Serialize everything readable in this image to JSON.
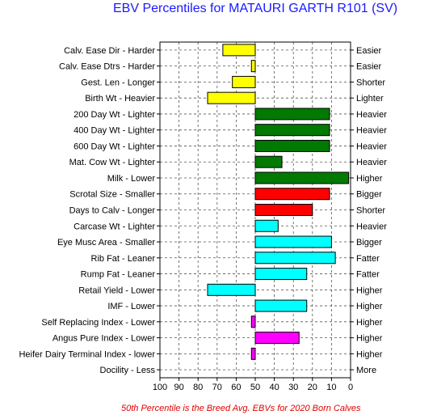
{
  "chart_data": {
    "type": "bar",
    "title": "EBV Percentiles for MATAURI GARTH R101 (SV)",
    "footnote": "50th Percentile is the Breed Avg. EBVs for 2020 Born Calves",
    "baseline": 50,
    "xlim": [
      100,
      0
    ],
    "x_ticks": [
      "100",
      "90",
      "80",
      "70",
      "60",
      "50",
      "40",
      "30",
      "20",
      "10",
      "0"
    ],
    "grid": true,
    "traits": [
      {
        "left": "Calv. Ease Dir - Harder",
        "right": "Easier",
        "value": 67,
        "color": "#ffff00"
      },
      {
        "left": "Calv. Ease Dtrs - Harder",
        "right": "Easier",
        "value": 52,
        "color": "#ffff00"
      },
      {
        "left": "Gest. Len - Longer",
        "right": "Shorter",
        "value": 62,
        "color": "#ffff00"
      },
      {
        "left": "Birth Wt - Heavier",
        "right": "Lighter",
        "value": 75,
        "color": "#ffff00"
      },
      {
        "left": "200 Day Wt - Lighter",
        "right": "Heavier",
        "value": 11,
        "color": "#007a00"
      },
      {
        "left": "400 Day Wt - Lighter",
        "right": "Heavier",
        "value": 11,
        "color": "#007a00"
      },
      {
        "left": "600 Day Wt - Lighter",
        "right": "Heavier",
        "value": 11,
        "color": "#007a00"
      },
      {
        "left": "Mat. Cow Wt - Lighter",
        "right": "Heavier",
        "value": 36,
        "color": "#007a00"
      },
      {
        "left": "Milk - Lower",
        "right": "Higher",
        "value": 1,
        "color": "#007a00"
      },
      {
        "left": "Scrotal Size - Smaller",
        "right": "Bigger",
        "value": 11,
        "color": "#ff0000"
      },
      {
        "left": "Days to Calv - Longer",
        "right": "Shorter",
        "value": 20,
        "color": "#ff0000"
      },
      {
        "left": "Carcase Wt - Lighter",
        "right": "Heavier",
        "value": 38,
        "color": "#00ffff"
      },
      {
        "left": "Eye Musc Area - Smaller",
        "right": "Bigger",
        "value": 10,
        "color": "#00ffff"
      },
      {
        "left": "Rib Fat - Leaner",
        "right": "Fatter",
        "value": 8,
        "color": "#00ffff"
      },
      {
        "left": "Rump Fat - Leaner",
        "right": "Fatter",
        "value": 23,
        "color": "#00ffff"
      },
      {
        "left": "Retail Yield - Lower",
        "right": "Higher",
        "value": 75,
        "color": "#00ffff"
      },
      {
        "left": "IMF - Lower",
        "right": "Higher",
        "value": 23,
        "color": "#00ffff"
      },
      {
        "left": "Self Replacing Index - Lower",
        "right": "Higher",
        "value": 52,
        "color": "#ff00ff"
      },
      {
        "left": "Angus Pure Index - Lower",
        "right": "Higher",
        "value": 27,
        "color": "#ff00ff"
      },
      {
        "left": "Heifer Dairy Terminal Index - lower",
        "right": "Higher",
        "value": 52,
        "color": "#ff00ff"
      },
      {
        "left": "Docility - Less",
        "right": "More",
        "value": 50,
        "color": "#ffffff"
      }
    ]
  }
}
